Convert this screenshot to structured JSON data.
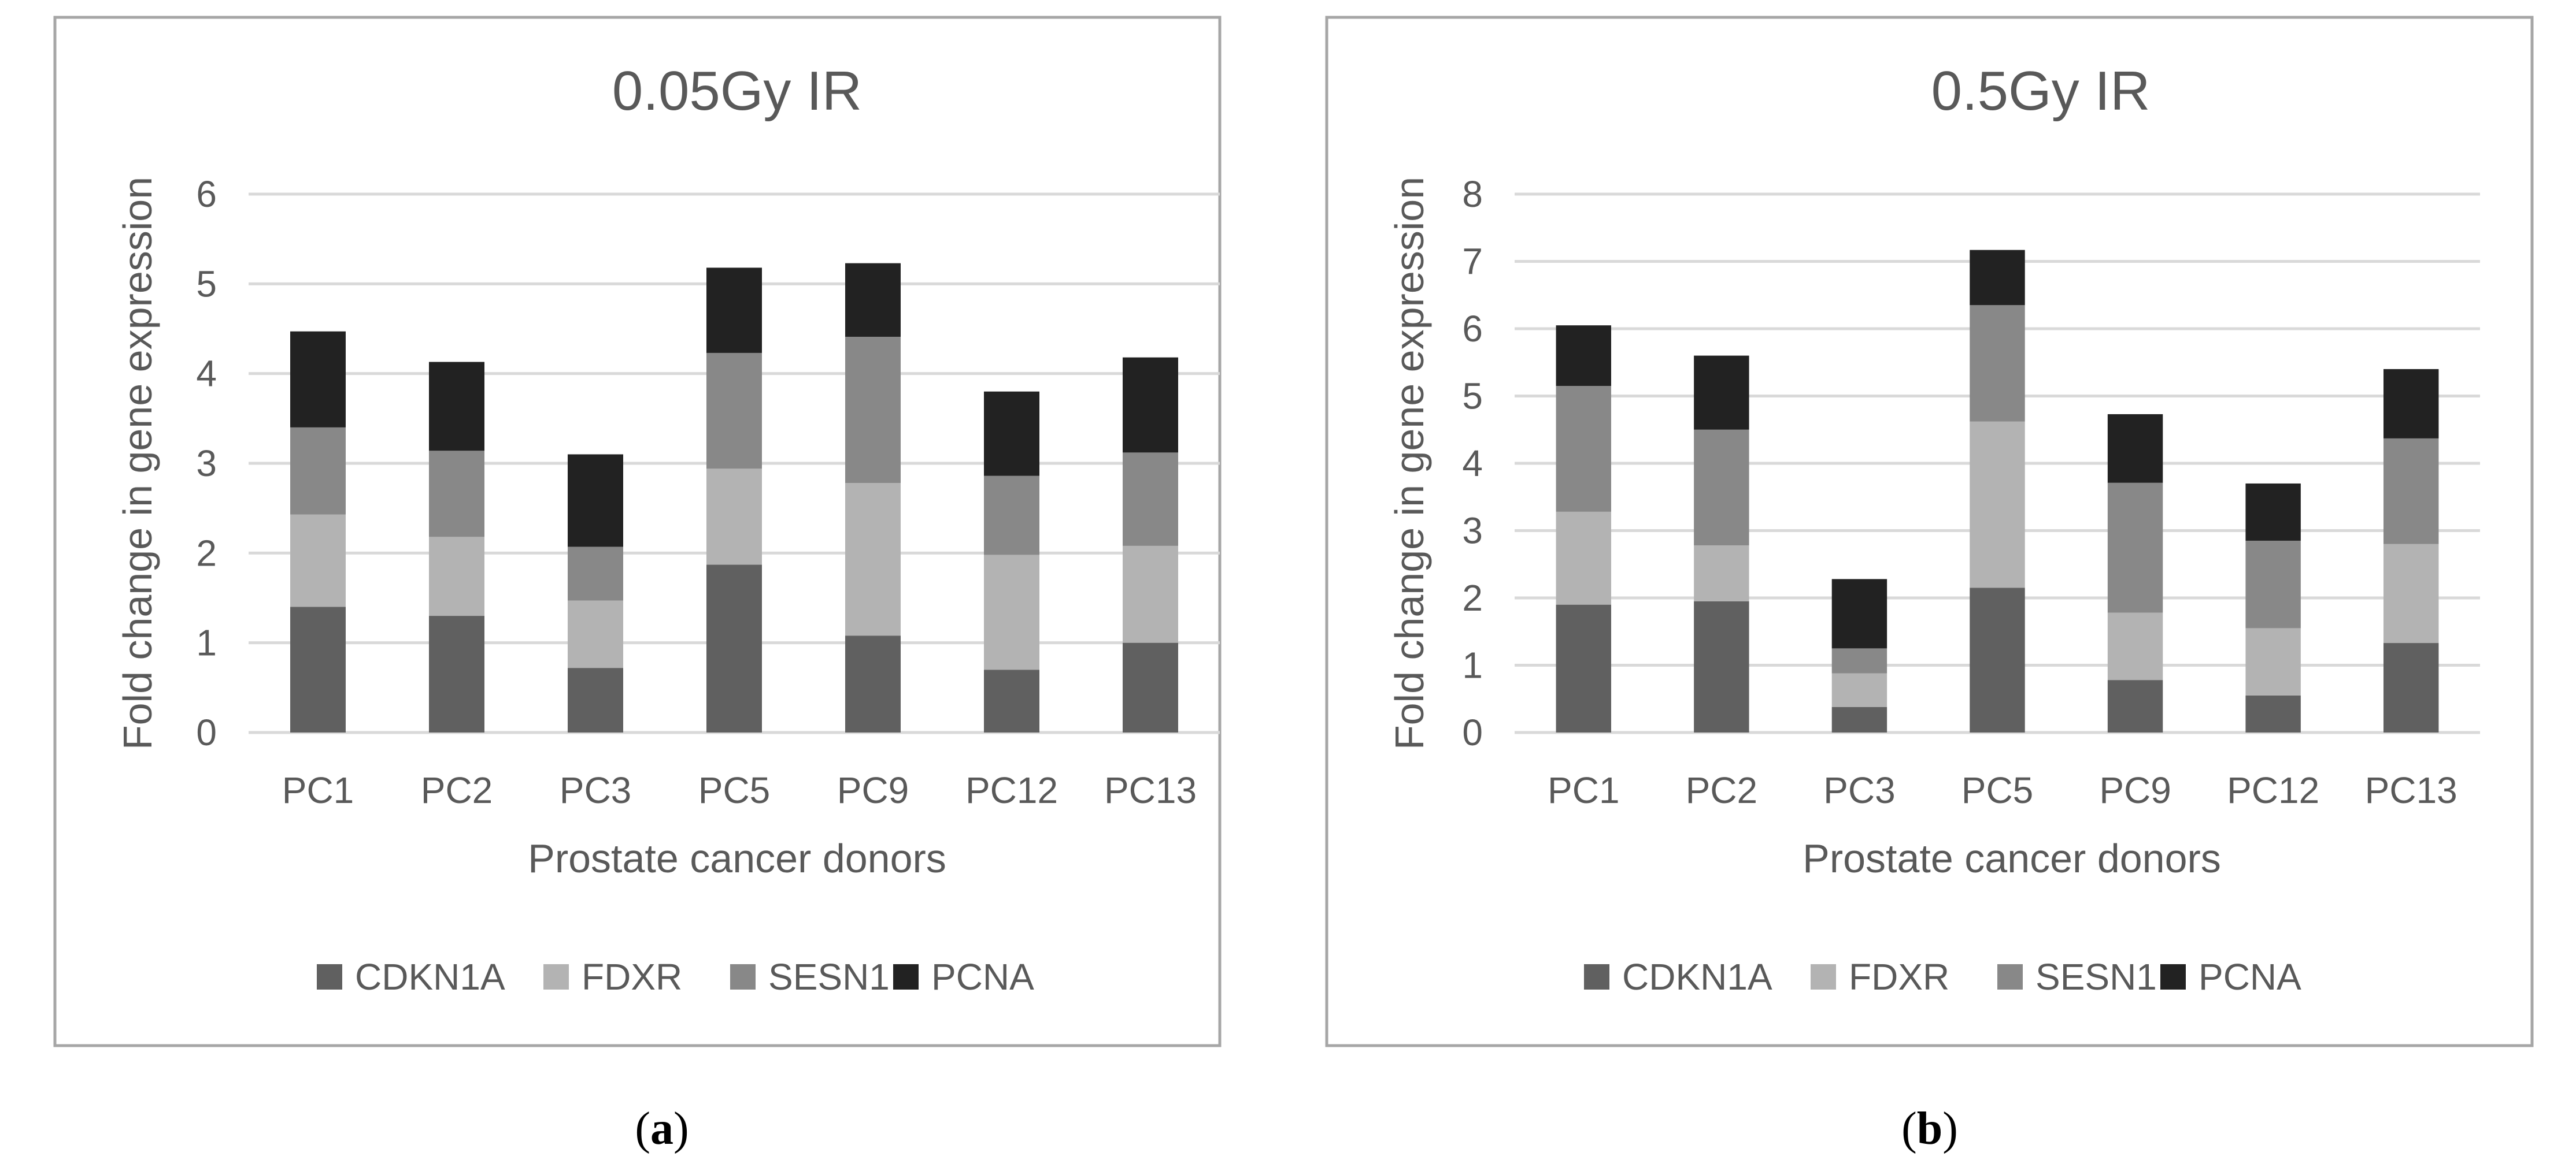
{
  "chart_data": [
    {
      "type": "bar",
      "stacked": true,
      "title": "0.05Gy IR",
      "xlabel": "Prostate cancer donors",
      "ylabel": "Fold change in gene expression",
      "ylim": [
        0,
        6
      ],
      "yticks": [
        "0",
        "1",
        "2",
        "3",
        "4",
        "5",
        "6"
      ],
      "grid": true,
      "legend_position": "bottom",
      "categories": [
        "PC1",
        "PC2",
        "PC3",
        "PC5",
        "PC9",
        "PC12",
        "PC13"
      ],
      "series": [
        {
          "name": "CDKN1A",
          "color": "#606060",
          "values": [
            1.4,
            1.3,
            0.72,
            1.87,
            1.08,
            0.7,
            1.0
          ]
        },
        {
          "name": "FDXR",
          "color": "#b3b3b3",
          "values": [
            1.03,
            0.88,
            0.75,
            1.07,
            1.7,
            1.28,
            1.08
          ]
        },
        {
          "name": "SESN1",
          "color": "#888888",
          "values": [
            0.97,
            0.96,
            0.6,
            1.29,
            1.63,
            0.88,
            1.04
          ]
        },
        {
          "name": "PCNA",
          "color": "#222222",
          "values": [
            1.07,
            0.99,
            1.03,
            0.95,
            0.82,
            0.94,
            1.06
          ]
        }
      ],
      "panel_label": "(a)"
    },
    {
      "type": "bar",
      "stacked": true,
      "title": "0.5Gy IR",
      "xlabel": "Prostate cancer donors",
      "ylabel": "Fold change in gene expression",
      "ylim": [
        0,
        8
      ],
      "yticks": [
        "0",
        "1",
        "2",
        "3",
        "4",
        "5",
        "6",
        "7",
        "8"
      ],
      "grid": true,
      "legend_position": "bottom",
      "categories": [
        "PC1",
        "PC2",
        "PC3",
        "PC5",
        "PC9",
        "PC12",
        "PC13"
      ],
      "series": [
        {
          "name": "CDKN1A",
          "color": "#606060",
          "values": [
            1.9,
            1.95,
            0.38,
            2.15,
            0.78,
            0.55,
            1.33
          ]
        },
        {
          "name": "FDXR",
          "color": "#b3b3b3",
          "values": [
            1.38,
            0.83,
            0.5,
            2.47,
            1.0,
            1.0,
            1.47
          ]
        },
        {
          "name": "SESN1",
          "color": "#888888",
          "values": [
            1.87,
            1.72,
            0.37,
            1.73,
            1.93,
            1.3,
            1.57
          ]
        },
        {
          "name": "PCNA",
          "color": "#222222",
          "values": [
            0.9,
            1.1,
            1.03,
            0.82,
            1.02,
            0.85,
            1.03
          ]
        }
      ],
      "panel_label": "(b)"
    }
  ]
}
